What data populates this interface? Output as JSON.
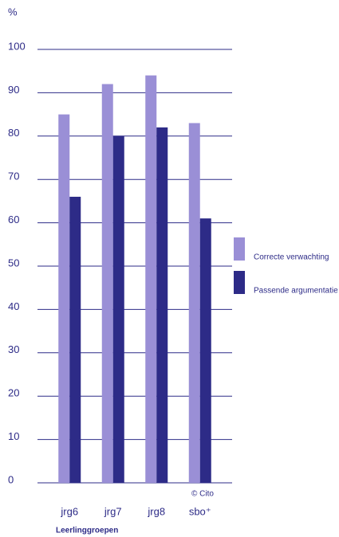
{
  "chart_data": {
    "type": "bar",
    "y_label": "%",
    "x_label": "Leerlinggroepen",
    "annotation": "© Cito",
    "categories": [
      "jrg6",
      "jrg7",
      "jrg8",
      "sbo⁺"
    ],
    "series": [
      {
        "name": "Correcte verwachting",
        "color": "#9a8fd6",
        "values": [
          85,
          92,
          94,
          83
        ]
      },
      {
        "name": "Passende argumentatie",
        "color": "#2d2b87",
        "values": [
          66,
          80,
          82,
          61
        ]
      }
    ],
    "ylim": [
      0,
      100
    ],
    "yticks": [
      0,
      10,
      20,
      30,
      40,
      50,
      60,
      70,
      80,
      90,
      100
    ],
    "grid": true,
    "legend": "right"
  }
}
